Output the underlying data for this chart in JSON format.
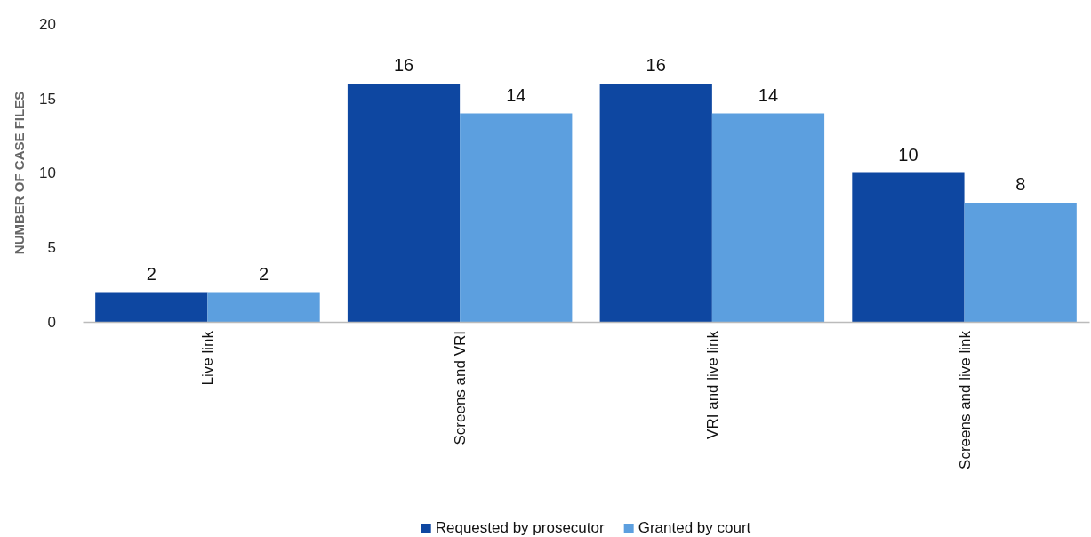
{
  "chart_data": {
    "type": "bar",
    "ylabel": "NUMBER OF CASE FILES",
    "categories": [
      "Live link",
      "Screens and VRI",
      "VRI and live link",
      "Screens and live link"
    ],
    "series": [
      {
        "name": "Requested by prosecutor",
        "color": "#0e47a1",
        "values": [
          2,
          16,
          16,
          10
        ]
      },
      {
        "name": "Granted by court",
        "color": "#5c9fdf",
        "values": [
          2,
          14,
          14,
          8
        ]
      }
    ],
    "ylim": [
      0,
      20
    ],
    "yticks": [
      0,
      5,
      10,
      15,
      20
    ],
    "grid": false,
    "legend": "bottom",
    "data_labels": true
  }
}
